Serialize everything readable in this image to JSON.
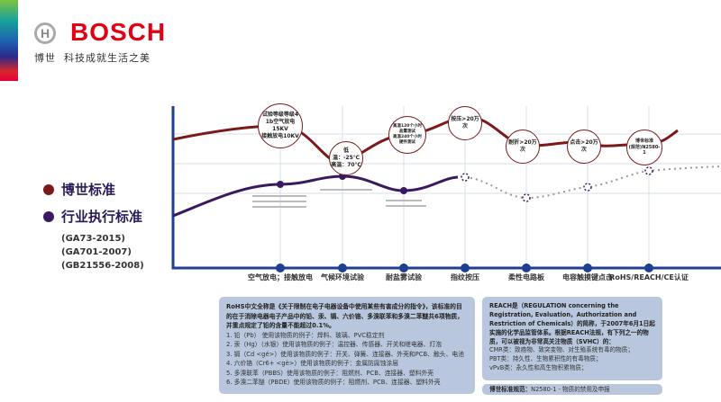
{
  "brand": {
    "name": "BOSCH",
    "cn": "博世",
    "slogan": "科技成就生活之美",
    "logo_icon": "bosch-armature-icon"
  },
  "legend": [
    {
      "label": "博世标准",
      "color": "#7b1a1a"
    },
    {
      "label": "行业执行标准",
      "color": "#3a1a5e"
    }
  ],
  "standards": [
    "(GA73-2015)",
    "(GA701-2007)",
    "(GB21556-2008)"
  ],
  "axis_labels": [
    "空气放电；接触放电",
    "气候环境试验",
    "耐盐雾试验",
    "指纹按压",
    "柔性电路板",
    "电容触摸键点击",
    "RoHS/REACH/CE认证"
  ],
  "bosch_bubbles": [
    [
      "试验等级等级4",
      "1b空气放电15KV",
      "接触放电10KV"
    ],
    [
      "低温：-25℃",
      "高温：70℃"
    ],
    [
      "高温120个小时",
      "盐雾测试",
      "高温240个小时",
      "硬件测试"
    ],
    [
      "按压>20万次"
    ],
    [
      "耐折>20万次"
    ],
    [
      "点击>20万次"
    ],
    [
      "博世标准",
      "(规范)N2580-1"
    ]
  ],
  "colors": {
    "bosch": "#7b1a1a",
    "industry": "#3a1a5e",
    "axis": "#1f3f8f",
    "grid": "#d5dceb",
    "box": "#b9c7de"
  },
  "rohs": {
    "intro": "RoHS中文全称是《关于限制在电子电器设备中使用某些有害成分的指令》，该标准的目的在于消除电器电子产品中的铅、汞、镉、六价铬、多溴联苯和多溴二苯醚共6项物质，并重点规定了铅的含量不能超过0.1%。",
    "items": [
      "1. 铅（Pb） 使用该物质的例子：焊料、玻璃、PVC稳定剂",
      "2. 汞（Hg）（水银）使用该物质的例子：温控器、传感器、开关和继电器、灯泡",
      "3. 镉（Cd <gé>）使用该物质的例子：开关、弹簧、连接器、外壳和PCB、触头、电池",
      "4. 六价铬（Cr6+ <gè>）使用该物质的例子：金属防腐蚀涂层",
      "5. 多溴联苯（PBBS）使用该物质的例子：阻燃剂、PCB、连接器、塑料外壳",
      "6. 多溴二苯醚（PBDE）使用该物质的例子：阻燃剂、PCB、连接器、塑料外壳"
    ]
  },
  "reach": {
    "intro": "REACH是（REGULATION concerning the Registration, Evaluation，Authorization and Restriction of Chemicals）的简称，于2007年6月1日起实施的化学品监管体系。根据REACH法规，有下列之一的物质，可以被视为非常高关注物质（SVHC）的：",
    "items": [
      "CMR类：致癌物、致突变物、对生殖系统有毒的物质；",
      "PBT类：持久性、生物累积性的有毒物质；",
      "vPvB类：永久性和高生物积累物质；"
    ]
  },
  "bosch_norm": {
    "label": "博世标准规范：",
    "value": "N2580-1 - 物质的禁用及申报"
  }
}
